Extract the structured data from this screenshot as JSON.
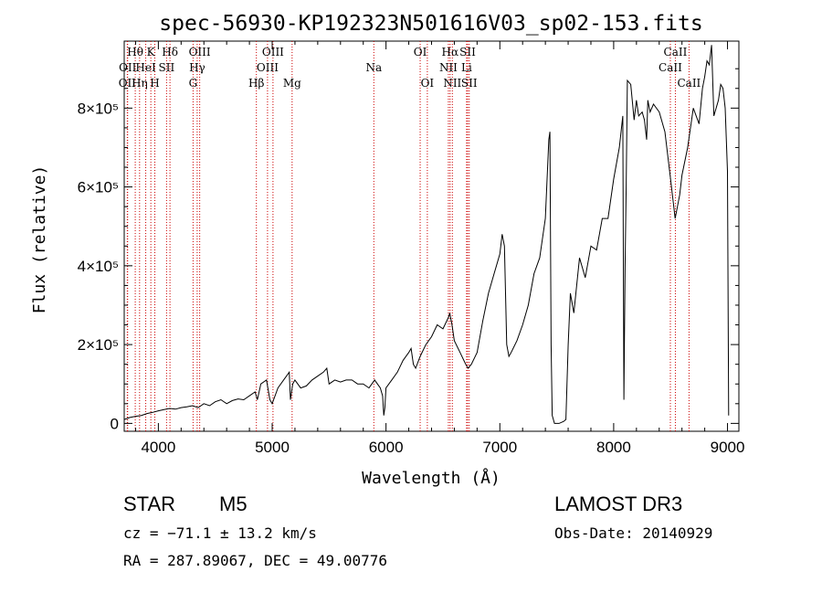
{
  "chart_data": {
    "type": "line",
    "title": "spec-56930-KP192323N501616V03_sp02-153.fits",
    "xlabel": "Wavelength (Å)",
    "ylabel": "Flux (relative)",
    "xlim": [
      3700,
      9100
    ],
    "ylim": [
      -20000,
      970000
    ],
    "x_ticks": [
      4000,
      5000,
      6000,
      7000,
      8000,
      9000
    ],
    "y_ticks": [
      {
        "value": 0,
        "label": "0"
      },
      {
        "value": 200000,
        "label": "2×10⁵"
      },
      {
        "value": 400000,
        "label": "4×10⁵"
      },
      {
        "value": 600000,
        "label": "6×10⁵"
      },
      {
        "value": 800000,
        "label": "8×10⁵"
      }
    ],
    "series": [
      {
        "name": "spectrum",
        "x": [
          3700,
          3750,
          3800,
          3850,
          3900,
          3950,
          4000,
          4050,
          4100,
          4150,
          4200,
          4250,
          4300,
          4350,
          4400,
          4450,
          4500,
          4550,
          4600,
          4650,
          4700,
          4750,
          4800,
          4850,
          4870,
          4900,
          4950,
          4980,
          5000,
          5050,
          5100,
          5150,
          5160,
          5170,
          5180,
          5200,
          5250,
          5300,
          5350,
          5400,
          5450,
          5480,
          5500,
          5550,
          5600,
          5650,
          5700,
          5750,
          5800,
          5850,
          5900,
          5950,
          5970,
          5980,
          5990,
          6000,
          6050,
          6100,
          6150,
          6200,
          6220,
          6240,
          6260,
          6300,
          6350,
          6400,
          6450,
          6500,
          6550,
          6560,
          6580,
          6600,
          6650,
          6700,
          6720,
          6750,
          6800,
          6850,
          6900,
          6950,
          7000,
          7020,
          7040,
          7060,
          7080,
          7100,
          7150,
          7200,
          7250,
          7300,
          7350,
          7400,
          7430,
          7440,
          7450,
          7460,
          7480,
          7520,
          7560,
          7580,
          7600,
          7620,
          7650,
          7700,
          7750,
          7800,
          7850,
          7900,
          7950,
          8000,
          8050,
          8080,
          8090,
          8100,
          8110,
          8120,
          8150,
          8180,
          8200,
          8220,
          8250,
          8270,
          8290,
          8300,
          8320,
          8350,
          8400,
          8450,
          8500,
          8520,
          8540,
          8560,
          8580,
          8600,
          8650,
          8700,
          8750,
          8780,
          8800,
          8820,
          8840,
          8860,
          8880,
          8900,
          8920,
          8940,
          8960,
          8980,
          9000,
          9010
        ],
        "y": [
          10000,
          15000,
          18000,
          20000,
          25000,
          28000,
          32000,
          35000,
          38000,
          36000,
          40000,
          42000,
          45000,
          40000,
          50000,
          45000,
          55000,
          60000,
          50000,
          58000,
          62000,
          60000,
          70000,
          80000,
          60000,
          100000,
          110000,
          60000,
          50000,
          90000,
          110000,
          130000,
          60000,
          80000,
          100000,
          110000,
          90000,
          95000,
          110000,
          120000,
          130000,
          140000,
          100000,
          110000,
          105000,
          110000,
          110000,
          100000,
          100000,
          90000,
          110000,
          90000,
          70000,
          20000,
          40000,
          90000,
          110000,
          130000,
          160000,
          180000,
          190000,
          150000,
          140000,
          170000,
          200000,
          220000,
          250000,
          240000,
          270000,
          280000,
          250000,
          210000,
          180000,
          150000,
          140000,
          150000,
          180000,
          260000,
          330000,
          380000,
          430000,
          480000,
          450000,
          200000,
          170000,
          180000,
          210000,
          250000,
          300000,
          380000,
          420000,
          520000,
          720000,
          740000,
          200000,
          20000,
          0,
          0,
          5000,
          10000,
          200000,
          330000,
          280000,
          420000,
          370000,
          450000,
          440000,
          520000,
          520000,
          620000,
          700000,
          780000,
          60000,
          400000,
          600000,
          870000,
          860000,
          770000,
          820000,
          780000,
          790000,
          770000,
          720000,
          820000,
          790000,
          810000,
          790000,
          740000,
          620000,
          570000,
          520000,
          550000,
          580000,
          630000,
          700000,
          800000,
          760000,
          850000,
          880000,
          920000,
          910000,
          960000,
          780000,
          800000,
          820000,
          860000,
          850000,
          800000,
          640000,
          20000
        ]
      }
    ],
    "emission_lines": [
      {
        "label": "OII",
        "wavelength": 3727,
        "row": 2
      },
      {
        "label": "Hθ",
        "wavelength": 3797,
        "row": 0
      },
      {
        "label": "OII",
        "wavelength": 3730,
        "row": 1
      },
      {
        "label": "Hη",
        "wavelength": 3835,
        "row": 2
      },
      {
        "label": "HeI",
        "wavelength": 3889,
        "row": 1
      },
      {
        "label": "K",
        "wavelength": 3934,
        "row": 0
      },
      {
        "label": "H",
        "wavelength": 3969,
        "row": 2
      },
      {
        "label": "SII",
        "wavelength": 4072,
        "row": 1
      },
      {
        "label": "Hδ",
        "wavelength": 4102,
        "row": 0
      },
      {
        "label": "OIII",
        "wavelength": 4363,
        "row": 0
      },
      {
        "label": "Hγ",
        "wavelength": 4341,
        "row": 1
      },
      {
        "label": "G",
        "wavelength": 4305,
        "row": 2
      },
      {
        "label": "Hβ",
        "wavelength": 4861,
        "row": 2
      },
      {
        "label": "OIII",
        "wavelength": 5007,
        "row": 0
      },
      {
        "label": "OIII",
        "wavelength": 4959,
        "row": 1
      },
      {
        "label": "Mg",
        "wavelength": 5175,
        "row": 2
      },
      {
        "label": "Na",
        "wavelength": 5893,
        "row": 1
      },
      {
        "label": "OI",
        "wavelength": 6300,
        "row": 0
      },
      {
        "label": "OI",
        "wavelength": 6363,
        "row": 2
      },
      {
        "label": "Hα",
        "wavelength": 6563,
        "row": 0
      },
      {
        "label": "NII",
        "wavelength": 6548,
        "row": 1
      },
      {
        "label": "NII",
        "wavelength": 6583,
        "row": 2
      },
      {
        "label": "SII",
        "wavelength": 6717,
        "row": 0
      },
      {
        "label": "Li",
        "wavelength": 6708,
        "row": 1
      },
      {
        "label": "SII",
        "wavelength": 6731,
        "row": 2
      },
      {
        "label": "CaII",
        "wavelength": 8498,
        "row": 1
      },
      {
        "label": "CaII",
        "wavelength": 8542,
        "row": 0
      },
      {
        "label": "CaII",
        "wavelength": 8662,
        "row": 2
      }
    ]
  },
  "info": {
    "class": "STAR",
    "subclass": "M5",
    "survey": "LAMOST DR3",
    "cz": "cz = −71.1 ± 13.2 km/s",
    "obs_date": "Obs-Date: 20140929",
    "coords": "RA = 287.89067, DEC =  49.00776"
  },
  "colors": {
    "line_marker": "#cc0000",
    "spectrum": "#000000",
    "axes": "#000000"
  }
}
